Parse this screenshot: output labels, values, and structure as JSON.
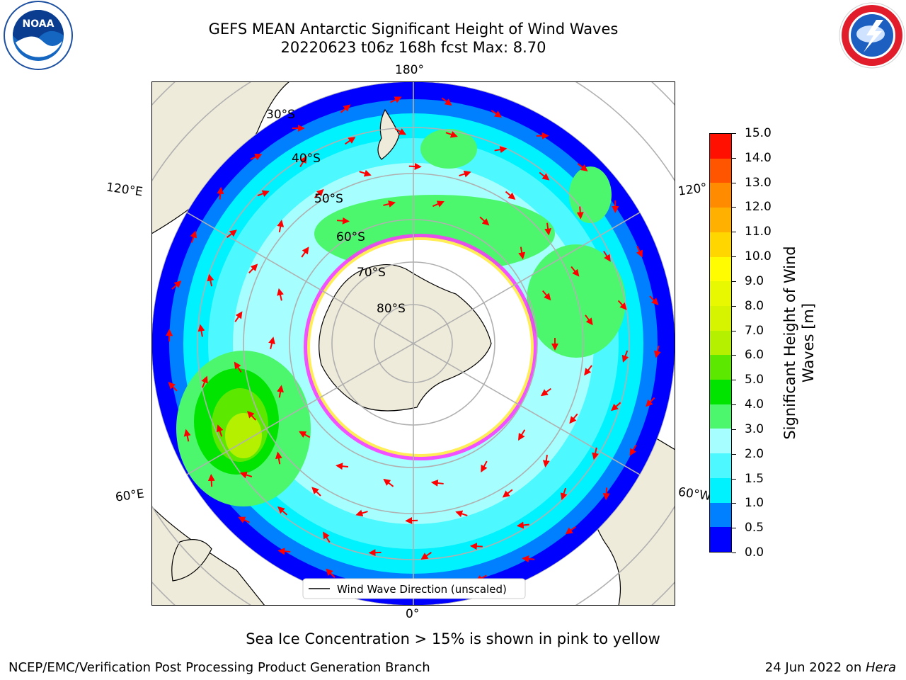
{
  "header": {
    "line1": "GEFS MEAN Antarctic Significant Height of Wind Waves",
    "line2": "20220623 t06z 168h fcst   Max: 8.70"
  },
  "logos": {
    "left": "NOAA",
    "right": "NATIONAL WEATHER SERVICE"
  },
  "map": {
    "projection": "south polar stereographic",
    "lon_labels": {
      "top": "180°",
      "bottom": "0°",
      "upper_left": "120°E",
      "upper_right": "120°",
      "lower_left": "60°E",
      "lower_right": "60°W"
    },
    "lat_labels": [
      "30°S",
      "40°S",
      "50°S",
      "60°S",
      "70°S",
      "80°S"
    ],
    "legend": "Wind Wave Direction (unscaled)",
    "land_color": "#efebda",
    "ice_color": "#ffffff",
    "arrow_color": "#ff0000"
  },
  "colorbar": {
    "label": "Significant Height of Wind Waves [m]",
    "ticks": [
      "0.0",
      "0.5",
      "1.0",
      "1.5",
      "2.0",
      "3.0",
      "4.0",
      "5.0",
      "6.0",
      "7.0",
      "8.0",
      "9.0",
      "10.0",
      "11.0",
      "12.0",
      "13.0",
      "14.0",
      "15.0"
    ],
    "colors": [
      "#0000ff",
      "#0080ff",
      "#00f2ff",
      "#4df8ff",
      "#a6feff",
      "#4cf76e",
      "#00e400",
      "#5de800",
      "#b4f000",
      "#d6f300",
      "#e8f800",
      "#fffb00",
      "#ffd600",
      "#ffb000",
      "#ff8c00",
      "#ff5400",
      "#ff1000"
    ]
  },
  "footer": {
    "note": "Sea Ice Concentration > 15% is shown in pink to yellow",
    "left": "NCEP/EMC/Verification Post Processing Product Generation Branch",
    "right_prefix": "24 Jun 2022 on ",
    "right_machine": "Hera"
  }
}
